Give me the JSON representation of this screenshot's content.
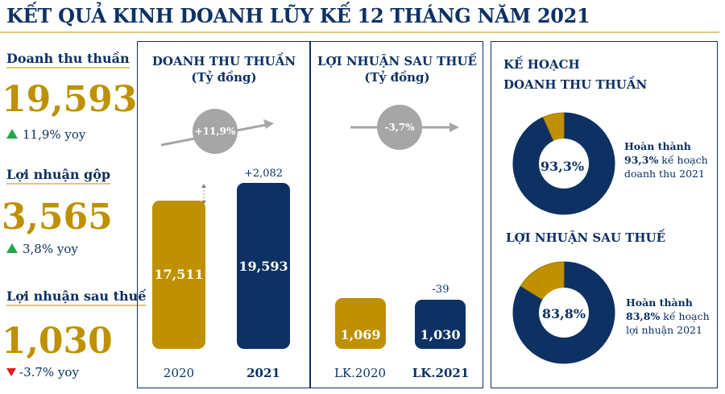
{
  "title": "KẾT QUẢ KINH DOANH LŨY KẾ 12 THÁNG NĂM 2021",
  "colors": {
    "navy": "#0d3163",
    "gold": "#bf9000",
    "up": "#1fa84a",
    "down": "#e01b1b",
    "circle": "#a6a6a6"
  },
  "kpis": [
    {
      "label": "Doanh thu thuần",
      "value": "19,593",
      "yoy": "11,9% yoy",
      "direction": "up"
    },
    {
      "label": "Lợi nhuận gộp",
      "value": "3,565",
      "yoy": "3,8% yoy",
      "direction": "up"
    },
    {
      "label": "Lợi nhuận sau thuế",
      "value": "1,030",
      "yoy": "-3.7% yoy",
      "direction": "down"
    }
  ],
  "chart_data": [
    {
      "type": "bar",
      "title": "DOANH THU THUẦN",
      "subtitle": "(Tỷ đồng)",
      "categories": [
        "2020",
        "2021"
      ],
      "values": [
        17511,
        19593
      ],
      "value_labels": [
        "17,511",
        "19,593"
      ],
      "change_label": "+2,082",
      "growth": "+11,9%",
      "colors": [
        "#bf9000",
        "#0d3163"
      ]
    },
    {
      "type": "bar",
      "title": "LỢI NHUẬN SAU THUẾ",
      "subtitle": "(Tỷ đồng)",
      "categories": [
        "LK.2020",
        "LK.2021"
      ],
      "values": [
        1069,
        1030
      ],
      "value_labels": [
        "1,069",
        "1,030"
      ],
      "change_label": "-39",
      "growth": "-3,7%",
      "colors": [
        "#bf9000",
        "#0d3163"
      ]
    },
    {
      "type": "pie",
      "title": "KẾ HOẠCH",
      "subtitle": "DOANH THU THUẦN",
      "values": [
        93.3,
        6.7
      ],
      "center_label": "93,3%",
      "note": [
        "Hoàn thành",
        "93,3%",
        " kế hoạch",
        "doanh thu 2021"
      ]
    },
    {
      "type": "pie",
      "title": "LỢI NHUẬN SAU THUẾ",
      "values": [
        83.8,
        16.2
      ],
      "center_label": "83,8%",
      "note": [
        "Hoàn thành",
        "83,8%",
        " kế hoạch",
        "lợi nhuận 2021"
      ]
    }
  ]
}
